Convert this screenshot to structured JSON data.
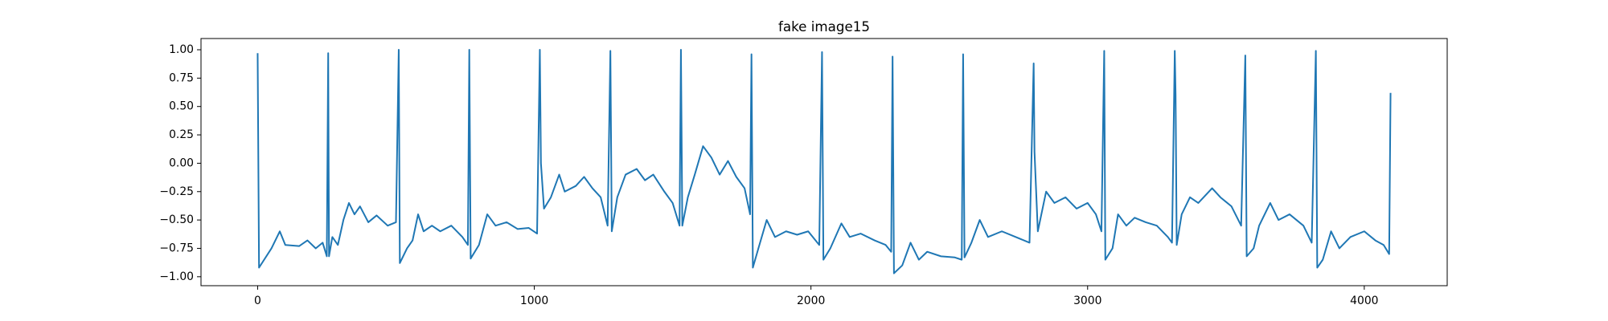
{
  "chart_data": {
    "type": "line",
    "title": "fake image15",
    "x": [
      0,
      5,
      50,
      80,
      100,
      150,
      180,
      210,
      235,
      250,
      255,
      258,
      270,
      290,
      310,
      330,
      350,
      370,
      400,
      430,
      470,
      500,
      510,
      514,
      540,
      560,
      580,
      600,
      630,
      660,
      700,
      740,
      760,
      765,
      770,
      800,
      830,
      860,
      900,
      940,
      980,
      1010,
      1020,
      1024,
      1035,
      1060,
      1090,
      1110,
      1150,
      1180,
      1210,
      1240,
      1265,
      1275,
      1280,
      1300,
      1330,
      1370,
      1400,
      1430,
      1470,
      1500,
      1525,
      1530,
      1535,
      1555,
      1580,
      1610,
      1640,
      1670,
      1700,
      1730,
      1760,
      1780,
      1785,
      1790,
      1810,
      1840,
      1870,
      1910,
      1950,
      1990,
      2030,
      2040,
      2045,
      2070,
      2110,
      2140,
      2180,
      2230,
      2270,
      2290,
      2295,
      2300,
      2330,
      2360,
      2390,
      2420,
      2470,
      2520,
      2545,
      2550,
      2555,
      2580,
      2610,
      2640,
      2690,
      2740,
      2790,
      2805,
      2808,
      2820,
      2850,
      2880,
      2920,
      2960,
      3000,
      3030,
      3050,
      3060,
      3064,
      3090,
      3110,
      3140,
      3170,
      3210,
      3250,
      3290,
      3305,
      3315,
      3318,
      3322,
      3340,
      3370,
      3400,
      3450,
      3480,
      3520,
      3555,
      3570,
      3575,
      3600,
      3620,
      3660,
      3690,
      3730,
      3780,
      3810,
      3825,
      3830,
      3850,
      3880,
      3910,
      3950,
      4000,
      4040,
      4070,
      4090,
      4095
    ],
    "series": [
      {
        "color": "#1f77b4",
        "values": [
          0.97,
          -0.92,
          -0.75,
          -0.6,
          -0.72,
          -0.73,
          -0.68,
          -0.75,
          -0.7,
          -0.82,
          0.97,
          -0.82,
          -0.65,
          -0.72,
          -0.5,
          -0.35,
          -0.45,
          -0.38,
          -0.52,
          -0.46,
          -0.55,
          -0.52,
          1.0,
          -0.88,
          -0.75,
          -0.68,
          -0.45,
          -0.6,
          -0.55,
          -0.6,
          -0.55,
          -0.65,
          -0.72,
          1.0,
          -0.84,
          -0.72,
          -0.45,
          -0.55,
          -0.52,
          -0.58,
          -0.57,
          -0.62,
          1.0,
          0.0,
          -0.4,
          -0.3,
          -0.1,
          -0.25,
          -0.2,
          -0.12,
          -0.22,
          -0.3,
          -0.55,
          0.99,
          -0.6,
          -0.3,
          -0.1,
          -0.05,
          -0.15,
          -0.1,
          -0.25,
          -0.35,
          -0.55,
          1.0,
          -0.55,
          -0.3,
          -0.1,
          0.15,
          0.05,
          -0.1,
          0.02,
          -0.12,
          -0.22,
          -0.45,
          0.96,
          -0.92,
          -0.75,
          -0.5,
          -0.65,
          -0.6,
          -0.63,
          -0.6,
          -0.72,
          0.98,
          -0.85,
          -0.75,
          -0.53,
          -0.65,
          -0.62,
          -0.68,
          -0.72,
          -0.78,
          0.94,
          -0.97,
          -0.9,
          -0.7,
          -0.85,
          -0.78,
          -0.82,
          -0.83,
          -0.85,
          0.96,
          -0.83,
          -0.7,
          -0.5,
          -0.65,
          -0.6,
          -0.65,
          -0.7,
          0.88,
          0.1,
          -0.6,
          -0.25,
          -0.35,
          -0.3,
          -0.4,
          -0.35,
          -0.45,
          -0.6,
          0.99,
          -0.85,
          -0.75,
          -0.45,
          -0.55,
          -0.48,
          -0.52,
          -0.55,
          -0.65,
          -0.7,
          0.99,
          0.6,
          -0.72,
          -0.45,
          -0.3,
          -0.35,
          -0.22,
          -0.3,
          -0.38,
          -0.55,
          0.95,
          -0.82,
          -0.75,
          -0.55,
          -0.35,
          -0.5,
          -0.45,
          -0.55,
          -0.7,
          0.99,
          -0.92,
          -0.85,
          -0.6,
          -0.75,
          -0.65,
          -0.6,
          -0.68,
          -0.72,
          -0.8,
          0.62
        ]
      }
    ],
    "xlim": [
      -204.75,
      4299.75
    ],
    "xticks": [
      0,
      1000,
      2000,
      3000,
      4000
    ],
    "ylim": [
      -1.079,
      1.099
    ],
    "yticks": [
      {
        "value": -1,
        "label": "−1.00"
      },
      {
        "value": -0.75,
        "label": "−0.75"
      },
      {
        "value": -0.5,
        "label": "−0.50"
      },
      {
        "value": -0.25,
        "label": "−0.25"
      },
      {
        "value": 0,
        "label": "0.00"
      },
      {
        "value": 0.25,
        "label": "0.25"
      },
      {
        "value": 0.5,
        "label": "0.50"
      },
      {
        "value": 0.75,
        "label": "0.75"
      },
      {
        "value": 1,
        "label": "1.00"
      }
    ]
  }
}
